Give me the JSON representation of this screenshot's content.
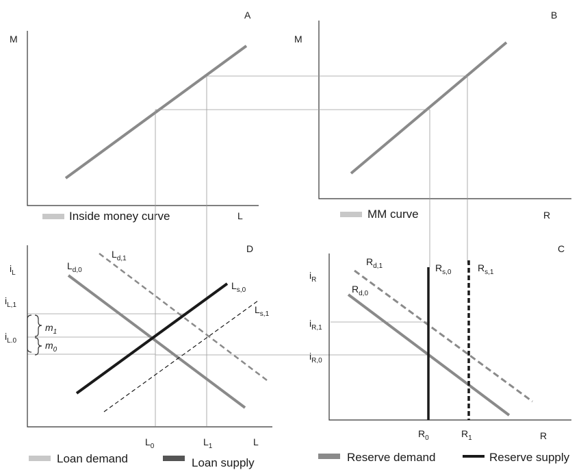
{
  "panels": {
    "A": {
      "letter": "A",
      "y_axis": "M",
      "x_axis": "L",
      "legend": "Inside money curve"
    },
    "B": {
      "letter": "B",
      "y_axis": "M",
      "x_axis": "R",
      "legend": "MM curve"
    },
    "C": {
      "letter": "C",
      "x_axis": "R",
      "y_ticks": [
        {
          "base": "i",
          "sub": "R"
        },
        {
          "base": "i",
          "sub": "R,1"
        },
        {
          "base": "i",
          "sub": "R,0"
        }
      ],
      "x_ticks": [
        {
          "base": "R",
          "sub": "0"
        },
        {
          "base": "R",
          "sub": "1"
        }
      ],
      "curve_labels": [
        {
          "base": "R",
          "sub": "d,1"
        },
        {
          "base": "R",
          "sub": "d,0"
        },
        {
          "base": "R",
          "sub": "s,0"
        },
        {
          "base": "R",
          "sub": "s,1"
        }
      ],
      "legend": [
        "Reserve demand",
        "Reserve supply"
      ]
    },
    "D": {
      "letter": "D",
      "x_axis": "L",
      "y_ticks": [
        {
          "base": "i",
          "sub": "L"
        },
        {
          "base": "i",
          "sub": "L,1"
        },
        {
          "base": "i",
          "sub": "L.0"
        }
      ],
      "x_ticks": [
        {
          "base": "L",
          "sub": "0"
        },
        {
          "base": "L",
          "sub": "1"
        }
      ],
      "curve_labels": [
        {
          "base": "L",
          "sub": "d,0"
        },
        {
          "base": "L",
          "sub": "d,1"
        },
        {
          "base": "L",
          "sub": "s,0"
        },
        {
          "base": "L",
          "sub": "s,1"
        }
      ],
      "margins": [
        {
          "base": "m",
          "sub": "1"
        },
        {
          "base": "m",
          "sub": "0"
        }
      ],
      "legend": [
        "Loan demand",
        "Loan supply"
      ]
    }
  },
  "colors": {
    "axis": "#333333",
    "curve": "#8a8a8a",
    "supply": "#1a1a1a",
    "guide": "#9a9a9a",
    "legend_light": "#c8c8c8",
    "legend_dark": "#555555"
  }
}
